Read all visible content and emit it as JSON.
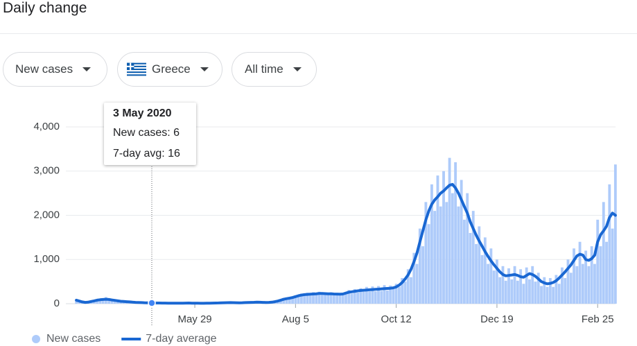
{
  "header": {
    "title": "Daily change"
  },
  "controls": {
    "metric": "New cases",
    "location": "Greece",
    "range": "All time"
  },
  "tooltip": {
    "title": "3 May 2020",
    "rows": [
      "New cases: 6",
      "7-day avg: 16"
    ]
  },
  "chart_data": {
    "type": "bar",
    "categories": [
      null,
      null,
      null,
      null,
      null,
      null,
      null,
      null,
      null,
      null,
      null,
      null,
      null,
      null,
      null,
      null,
      null,
      null,
      null,
      null,
      null,
      null,
      null,
      null,
      null,
      null,
      null,
      null,
      null,
      null,
      null,
      null,
      null,
      null,
      null,
      null,
      null,
      null,
      null,
      null,
      "May 29",
      null,
      null,
      null,
      null,
      null,
      null,
      null,
      null,
      null,
      null,
      null,
      null,
      null,
      null,
      null,
      null,
      null,
      null,
      null,
      null,
      null,
      null,
      null,
      null,
      null,
      null,
      null,
      null,
      null,
      null,
      null,
      null,
      null,
      "Aug 5",
      null,
      null,
      null,
      null,
      null,
      null,
      null,
      null,
      null,
      null,
      null,
      null,
      null,
      null,
      null,
      null,
      null,
      null,
      null,
      null,
      null,
      null,
      null,
      null,
      null,
      null,
      null,
      null,
      null,
      null,
      null,
      null,
      null,
      "Oct 12",
      null,
      null,
      null,
      null,
      null,
      null,
      null,
      null,
      null,
      null,
      null,
      null,
      null,
      null,
      null,
      null,
      null,
      null,
      null,
      null,
      null,
      null,
      null,
      null,
      null,
      null,
      null,
      null,
      null,
      null,
      null,
      null,
      null,
      "Dec 19",
      null,
      null,
      null,
      null,
      null,
      null,
      null,
      null,
      null,
      null,
      null,
      null,
      null,
      null,
      null,
      null,
      null,
      null,
      null,
      null,
      null,
      null,
      null,
      null,
      null,
      null,
      null,
      null,
      null,
      null,
      null,
      null,
      null,
      "Feb 25",
      null,
      null,
      null,
      null,
      null,
      null
    ],
    "series": [
      {
        "name": "New cases",
        "type": "bar",
        "color": "#aecbfa",
        "values": [
          90,
          40,
          30,
          20,
          45,
          70,
          60,
          95,
          110,
          70,
          150,
          80,
          95,
          60,
          75,
          40,
          60,
          35,
          50,
          30,
          25,
          40,
          20,
          30,
          15,
          25,
          10,
          20,
          6,
          12,
          18,
          9,
          15,
          8,
          14,
          10,
          16,
          12,
          20,
          9,
          15,
          8,
          12,
          6,
          14,
          10,
          18,
          12,
          22,
          15,
          28,
          18,
          30,
          20,
          26,
          15,
          28,
          20,
          34,
          25,
          40,
          28,
          38,
          22,
          34,
          26,
          44,
          40,
          75,
          70,
          130,
          95,
          150,
          120,
          190,
          160,
          230,
          180,
          250,
          190,
          260,
          200,
          270,
          210,
          250,
          200,
          260,
          190,
          240,
          200,
          250,
          210,
          310,
          230,
          330,
          250,
          350,
          270,
          380,
          280,
          390,
          280,
          400,
          290,
          420,
          300,
          410,
          330,
          450,
          380,
          580,
          500,
          780,
          600,
          1150,
          900,
          1700,
          1300,
          2300,
          1800,
          2700,
          2100,
          2900,
          2200,
          3000,
          2300,
          3300,
          2500,
          3200,
          2200,
          2800,
          1900,
          2500,
          1600,
          2100,
          1350,
          1750,
          1100,
          1500,
          900,
          1250,
          750,
          1000,
          600,
          850,
          520,
          800,
          550,
          850,
          520,
          780,
          450,
          820,
          550,
          850,
          500,
          700,
          400,
          600,
          380,
          580,
          380,
          650,
          450,
          820,
          580,
          1000,
          700,
          1250,
          850,
          1400,
          900,
          1200,
          850,
          1300,
          900,
          1900,
          1300,
          2300,
          1400,
          2700,
          1700,
          3150
        ]
      },
      {
        "name": "7-day average",
        "type": "line",
        "color": "#1967d2",
        "values": [
          80,
          60,
          40,
          30,
          35,
          50,
          65,
          80,
          90,
          95,
          100,
          95,
          85,
          75,
          65,
          55,
          50,
          45,
          40,
          35,
          30,
          28,
          25,
          22,
          20,
          18,
          17,
          16,
          15,
          14,
          14,
          13,
          12,
          12,
          11,
          12,
          13,
          14,
          15,
          13,
          12,
          11,
          10,
          10,
          11,
          12,
          14,
          16,
          18,
          20,
          22,
          24,
          25,
          24,
          22,
          20,
          22,
          25,
          28,
          30,
          32,
          35,
          33,
          30,
          28,
          30,
          35,
          45,
          60,
          80,
          100,
          115,
          125,
          140,
          160,
          180,
          195,
          205,
          210,
          215,
          220,
          225,
          230,
          230,
          228,
          225,
          222,
          220,
          218,
          215,
          220,
          240,
          260,
          270,
          280,
          290,
          300,
          305,
          310,
          315,
          320,
          325,
          330,
          335,
          340,
          345,
          350,
          360,
          380,
          420,
          480,
          560,
          650,
          780,
          950,
          1150,
          1400,
          1650,
          1900,
          2100,
          2250,
          2350,
          2420,
          2500,
          2550,
          2620,
          2680,
          2700,
          2620,
          2500,
          2350,
          2200,
          2050,
          1850,
          1700,
          1550,
          1420,
          1300,
          1180,
          1070,
          970,
          880,
          800,
          720,
          660,
          630,
          640,
          650,
          660,
          640,
          610,
          600,
          640,
          680,
          660,
          620,
          560,
          500,
          470,
          450,
          460,
          480,
          520,
          580,
          650,
          720,
          800,
          880,
          980,
          1080,
          1120,
          1100,
          1000,
          980,
          1020,
          1100,
          1400,
          1560,
          1650,
          1750,
          1950,
          2050,
          2000
        ]
      }
    ],
    "ylim": [
      0,
      4000
    ],
    "yticks": [
      0,
      {
        "value": 1000,
        "label": "1,000"
      },
      {
        "value": 2000,
        "label": "2,000"
      },
      {
        "value": 3000,
        "label": "3,000"
      },
      {
        "value": 4000,
        "label": "4,000"
      }
    ],
    "grid": true,
    "legend": "bottom-left"
  }
}
